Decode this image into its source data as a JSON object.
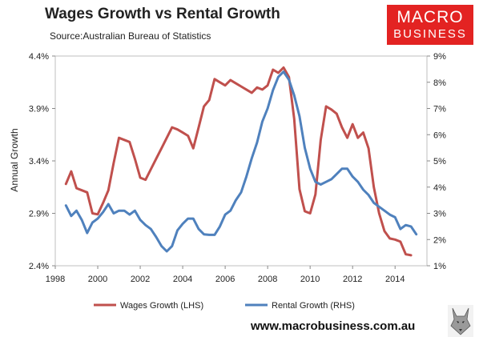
{
  "header": {
    "title": "Wages Growth vs Rental Growth",
    "subtitle": "Source:Australian Bureau of Statistics",
    "logo_line1": "MACRO",
    "logo_line2": "BUSINESS",
    "logo_color": "#e32322",
    "footer_url": "www.macrobusiness.com.au"
  },
  "chart_data": {
    "type": "line",
    "title": "Wages Growth vs Rental Growth",
    "ylabel": "Annual Growth",
    "xlim": [
      1998,
      2015.5
    ],
    "x_ticks": [
      "1998",
      "2000",
      "2002",
      "2004",
      "2006",
      "2008",
      "2010",
      "2012",
      "2014"
    ],
    "y_left": {
      "lim": [
        2.4,
        4.4
      ],
      "ticks": [
        "2.4%",
        "2.9%",
        "3.4%",
        "3.9%",
        "4.4%"
      ]
    },
    "y_right": {
      "lim": [
        1,
        9
      ],
      "ticks": [
        "1%",
        "2%",
        "3%",
        "4%",
        "5%",
        "6%",
        "7%",
        "8%",
        "9%"
      ]
    },
    "grid": false,
    "legend_position": "bottom",
    "series": [
      {
        "name": "Wages Growth (LHS)",
        "axis": "left",
        "color": "#c0504d",
        "x": [
          1998.5,
          1998.75,
          1999,
          1999.25,
          1999.5,
          1999.75,
          2000,
          2000.25,
          2000.5,
          2000.75,
          2001,
          2001.25,
          2001.5,
          2001.75,
          2002,
          2002.25,
          2002.5,
          2002.75,
          2003,
          2003.25,
          2003.5,
          2003.75,
          2004,
          2004.25,
          2004.5,
          2004.75,
          2005,
          2005.25,
          2005.5,
          2005.75,
          2006,
          2006.25,
          2006.5,
          2006.75,
          2007,
          2007.25,
          2007.5,
          2007.75,
          2008,
          2008.25,
          2008.5,
          2008.75,
          2009,
          2009.25,
          2009.5,
          2009.75,
          2010,
          2010.25,
          2010.5,
          2010.75,
          2011,
          2011.25,
          2011.5,
          2011.75,
          2012,
          2012.25,
          2012.5,
          2012.75,
          2013,
          2013.25,
          2013.5,
          2013.75,
          2014,
          2014.25,
          2014.5,
          2014.75
        ],
        "values": [
          3.18,
          3.3,
          3.14,
          3.12,
          3.1,
          2.9,
          2.89,
          3.0,
          3.12,
          3.38,
          3.62,
          3.6,
          3.58,
          3.42,
          3.24,
          3.22,
          3.32,
          3.42,
          3.52,
          3.62,
          3.72,
          3.7,
          3.67,
          3.64,
          3.52,
          3.72,
          3.92,
          3.98,
          4.18,
          4.15,
          4.12,
          4.17,
          4.14,
          4.11,
          4.08,
          4.05,
          4.1,
          4.08,
          4.12,
          4.27,
          4.24,
          4.29,
          4.2,
          3.8,
          3.13,
          2.92,
          2.9,
          3.08,
          3.6,
          3.92,
          3.89,
          3.85,
          3.72,
          3.62,
          3.75,
          3.62,
          3.67,
          3.52,
          3.15,
          2.9,
          2.73,
          2.66,
          2.65,
          2.63,
          2.51,
          2.5
        ]
      },
      {
        "name": "Rental Growth (RHS)",
        "axis": "right",
        "color": "#4f81bd",
        "x": [
          1998.5,
          1998.75,
          1999,
          1999.25,
          1999.5,
          1999.75,
          2000,
          2000.25,
          2000.5,
          2000.75,
          2001,
          2001.25,
          2001.5,
          2001.75,
          2002,
          2002.25,
          2002.5,
          2002.75,
          2003,
          2003.25,
          2003.5,
          2003.75,
          2004,
          2004.25,
          2004.5,
          2004.75,
          2005,
          2005.25,
          2005.5,
          2005.75,
          2006,
          2006.25,
          2006.5,
          2006.75,
          2007,
          2007.25,
          2007.5,
          2007.75,
          2008,
          2008.25,
          2008.5,
          2008.75,
          2009,
          2009.25,
          2009.5,
          2009.75,
          2010,
          2010.25,
          2010.5,
          2010.75,
          2011,
          2011.25,
          2011.5,
          2011.75,
          2012,
          2012.25,
          2012.5,
          2012.75,
          2013,
          2013.25,
          2013.5,
          2013.75,
          2014,
          2014.25,
          2014.5,
          2014.75,
          2015
        ],
        "values": [
          3.3,
          2.9,
          3.1,
          2.75,
          2.25,
          2.65,
          2.8,
          3.05,
          3.35,
          3.0,
          3.1,
          3.1,
          2.95,
          3.1,
          2.75,
          2.55,
          2.4,
          2.1,
          1.75,
          1.55,
          1.75,
          2.35,
          2.6,
          2.8,
          2.8,
          2.4,
          2.2,
          2.18,
          2.18,
          2.5,
          2.95,
          3.1,
          3.5,
          3.8,
          4.4,
          5.1,
          5.7,
          6.5,
          7.0,
          7.7,
          8.2,
          8.4,
          8.1,
          7.5,
          6.7,
          5.5,
          4.7,
          4.2,
          4.1,
          4.2,
          4.3,
          4.5,
          4.7,
          4.7,
          4.4,
          4.2,
          3.9,
          3.7,
          3.4,
          3.25,
          3.1,
          2.95,
          2.85,
          2.4,
          2.55,
          2.5,
          2.2
        ]
      }
    ]
  }
}
